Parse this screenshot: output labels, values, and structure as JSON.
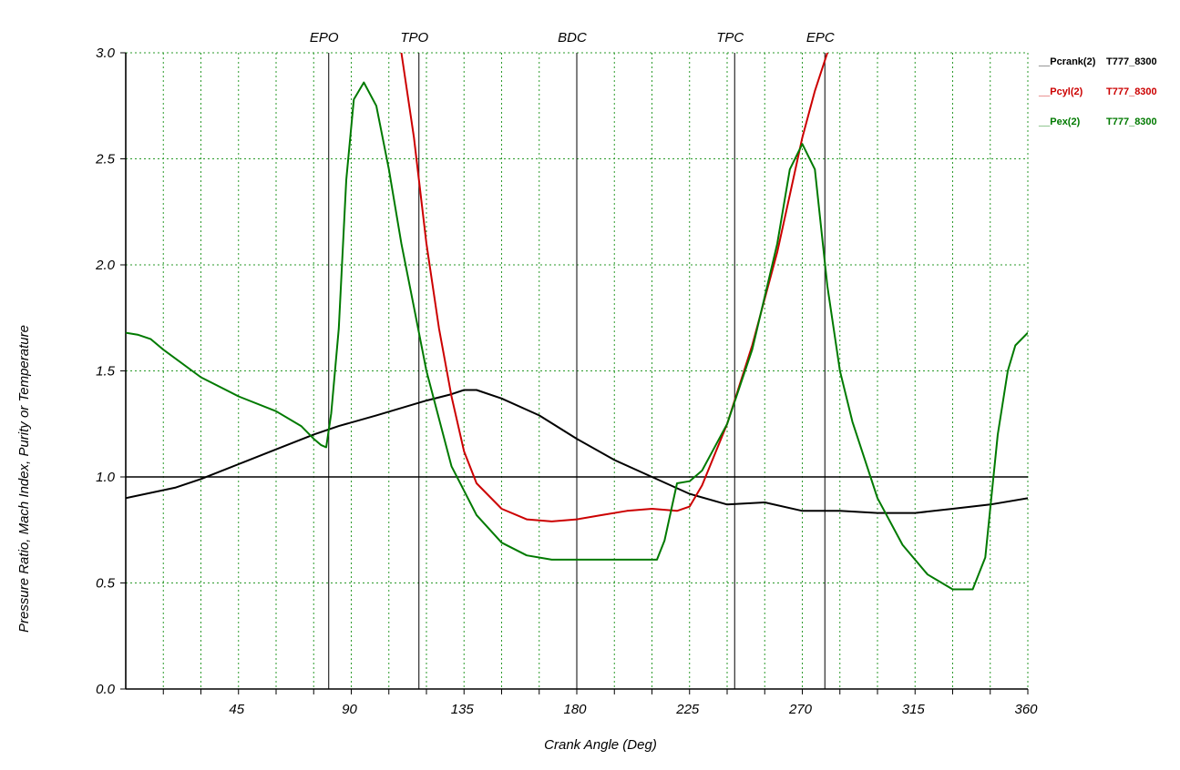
{
  "chart_data": {
    "type": "line",
    "title": "",
    "xlabel": "Crank Angle (Deg)",
    "ylabel": "Pressure Ratio, Mach Index, Purity or Temperature",
    "xlim": [
      0,
      360
    ],
    "ylim": [
      0,
      3.0
    ],
    "x_ticks": [
      45,
      90,
      135,
      180,
      225,
      270,
      315,
      360
    ],
    "x_tick_labels": [
      "45",
      "90",
      "135",
      "180",
      "225",
      "270",
      "315",
      "360"
    ],
    "y_ticks": [
      0,
      0.5,
      1.0,
      1.5,
      2.0,
      2.5,
      3.0
    ],
    "y_tick_labels": [
      "0.0",
      "0.5",
      "1.0",
      "1.5",
      "2.0",
      "2.5",
      "3.0"
    ],
    "grid": true,
    "grid_style": "dotted",
    "x_minor_step": 15,
    "reference_line": {
      "y": 1.0
    },
    "legend_position": "right",
    "events": [
      {
        "label": "EPO",
        "x": 81
      },
      {
        "label": "TPO",
        "x": 117
      },
      {
        "label": "BDC",
        "x": 180
      },
      {
        "label": "TPC",
        "x": 243
      },
      {
        "label": "EPC",
        "x": 279
      }
    ],
    "series": [
      {
        "name": "Pcrank(2)",
        "case": "T777_8300",
        "color": "#000000",
        "x": [
          0,
          20,
          30,
          45,
          60,
          75,
          85,
          100,
          120,
          130,
          135,
          140,
          150,
          165,
          180,
          195,
          210,
          225,
          240,
          255,
          270,
          285,
          300,
          315,
          330,
          345,
          360
        ],
        "y": [
          0.9,
          0.95,
          0.99,
          1.06,
          1.13,
          1.2,
          1.24,
          1.29,
          1.36,
          1.39,
          1.41,
          1.41,
          1.37,
          1.29,
          1.18,
          1.08,
          1.0,
          0.92,
          0.87,
          0.88,
          0.84,
          0.84,
          0.83,
          0.83,
          0.85,
          0.87,
          0.9
        ]
      },
      {
        "name": "Pcyl(2)",
        "case": "T777_8300",
        "color": "#cc0000",
        "x": [
          110,
          115,
          120,
          125,
          130,
          135,
          140,
          150,
          160,
          170,
          180,
          190,
          200,
          210,
          220,
          225,
          230,
          240,
          250,
          260,
          265,
          270,
          275,
          280
        ],
        "y": [
          3.0,
          2.6,
          2.1,
          1.7,
          1.38,
          1.12,
          0.97,
          0.85,
          0.8,
          0.79,
          0.8,
          0.82,
          0.84,
          0.85,
          0.84,
          0.86,
          0.96,
          1.25,
          1.62,
          2.06,
          2.33,
          2.6,
          2.82,
          3.0
        ]
      },
      {
        "name": "Pex(2)",
        "case": "T777_8300",
        "color": "#007a00",
        "x": [
          0,
          5,
          10,
          15,
          30,
          45,
          60,
          70,
          75,
          78,
          80,
          82,
          85,
          88,
          91,
          95,
          100,
          105,
          110,
          115,
          120,
          130,
          140,
          150,
          160,
          170,
          180,
          190,
          200,
          212,
          215,
          220,
          225,
          230,
          240,
          250,
          260,
          265,
          270,
          275,
          280,
          285,
          290,
          300,
          310,
          320,
          330,
          338,
          343,
          348,
          352,
          355,
          360
        ],
        "y": [
          1.68,
          1.67,
          1.65,
          1.6,
          1.47,
          1.38,
          1.31,
          1.24,
          1.18,
          1.15,
          1.14,
          1.3,
          1.7,
          2.4,
          2.78,
          2.86,
          2.75,
          2.45,
          2.1,
          1.8,
          1.5,
          1.05,
          0.82,
          0.69,
          0.63,
          0.61,
          0.61,
          0.61,
          0.61,
          0.61,
          0.7,
          0.97,
          0.98,
          1.03,
          1.25,
          1.6,
          2.1,
          2.45,
          2.57,
          2.45,
          1.9,
          1.5,
          1.26,
          0.9,
          0.68,
          0.54,
          0.47,
          0.47,
          0.62,
          1.2,
          1.5,
          1.62,
          1.68
        ]
      }
    ]
  }
}
